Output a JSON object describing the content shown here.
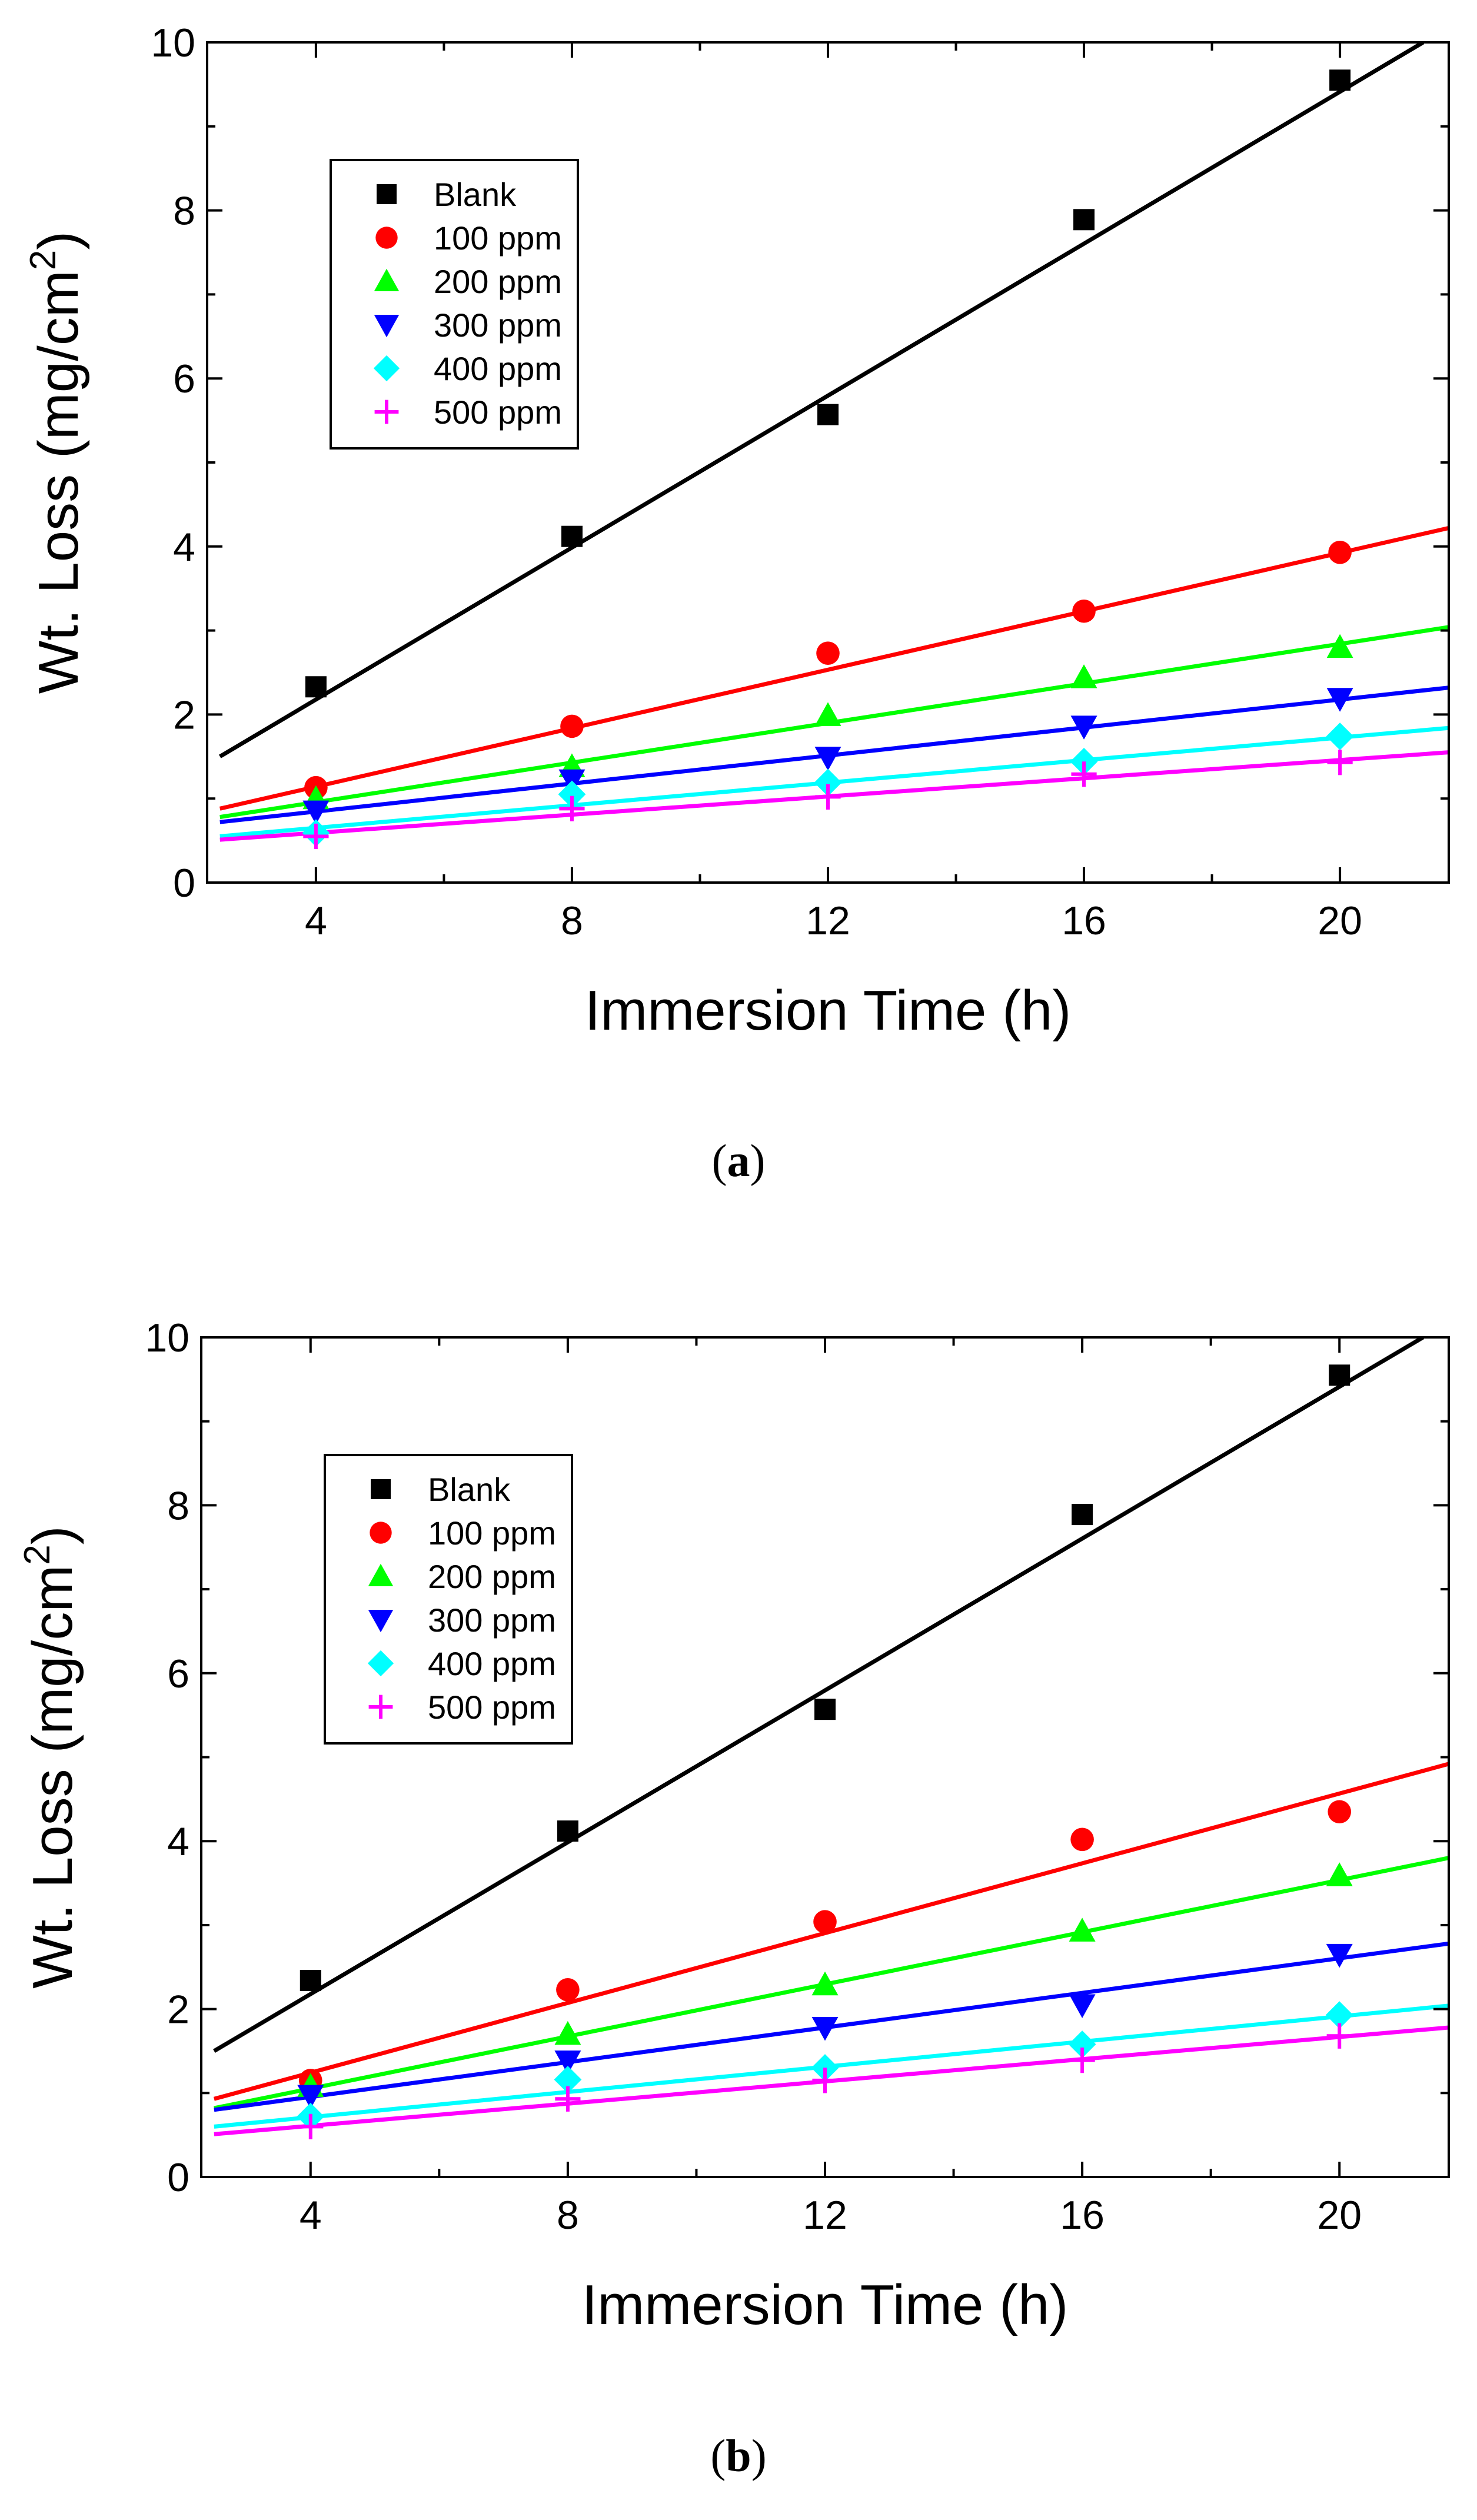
{
  "chart_data": [
    {
      "type": "scatter",
      "panel_label": "a",
      "xlabel": "Immersion Time (h)",
      "ylabel": "Wt. Loss (mg/cm",
      "ylabel_sup": "2",
      "ylabel_end": ")",
      "xlim": [
        2.3,
        21.7
      ],
      "ylim": [
        0,
        10
      ],
      "xticks": [
        4,
        8,
        12,
        16,
        20
      ],
      "yticks": [
        0,
        2,
        4,
        6,
        8,
        10
      ],
      "legend_position": "top-left",
      "x": [
        4,
        8,
        12,
        16,
        20
      ],
      "series": [
        {
          "name": "Blank",
          "marker": "square",
          "color": "#000000",
          "values": [
            2.33,
            4.12,
            5.57,
            7.89,
            9.55
          ],
          "fit": [
            1.5,
            10.0
          ],
          "fit_x": [
            2.5,
            21.3
          ]
        },
        {
          "name": "100 ppm",
          "marker": "circle",
          "color": "#ff0000",
          "values": [
            1.13,
            1.86,
            2.73,
            3.23,
            3.93
          ],
          "fit": [
            0.88,
            4.22
          ],
          "fit_x": [
            2.5,
            21.7
          ]
        },
        {
          "name": "200 ppm",
          "marker": "triangle-up",
          "color": "#00ff00",
          "values": [
            1.0,
            1.38,
            1.99,
            2.44,
            2.8
          ],
          "fit": [
            0.78,
            3.04
          ],
          "fit_x": [
            2.5,
            21.7
          ]
        },
        {
          "name": "300 ppm",
          "marker": "triangle-down",
          "color": "#0000ff",
          "values": [
            0.85,
            1.22,
            1.49,
            1.86,
            2.19
          ],
          "fit": [
            0.72,
            2.32
          ],
          "fit_x": [
            2.5,
            21.7
          ]
        },
        {
          "name": "400 ppm",
          "marker": "diamond",
          "color": "#00ffff",
          "values": [
            0.59,
            1.05,
            1.19,
            1.44,
            1.74
          ],
          "fit": [
            0.55,
            1.84
          ],
          "fit_x": [
            2.5,
            21.7
          ]
        },
        {
          "name": "500 ppm",
          "marker": "plus",
          "color": "#ff00ff",
          "values": [
            0.55,
            0.88,
            1.02,
            1.29,
            1.43
          ],
          "fit": [
            0.51,
            1.55
          ],
          "fit_x": [
            2.5,
            21.7
          ]
        }
      ]
    },
    {
      "type": "scatter",
      "panel_label": "b",
      "xlabel": "Immersion Time (h)",
      "ylabel": "Wt. Loss (mg/cm",
      "ylabel_sup": "2",
      "ylabel_end": ")",
      "xlim": [
        2.3,
        21.7
      ],
      "ylim": [
        0,
        10
      ],
      "xticks": [
        4,
        8,
        12,
        16,
        20
      ],
      "yticks": [
        0,
        2,
        4,
        6,
        8,
        10
      ],
      "legend_position": "top-left",
      "x": [
        4,
        8,
        12,
        16,
        20
      ],
      "series": [
        {
          "name": "Blank",
          "marker": "square",
          "color": "#000000",
          "values": [
            2.34,
            4.12,
            5.57,
            7.89,
            9.55
          ],
          "fit": [
            1.5,
            10.0
          ],
          "fit_x": [
            2.5,
            21.3
          ]
        },
        {
          "name": "100 ppm",
          "marker": "circle",
          "color": "#ff0000",
          "values": [
            1.15,
            2.23,
            3.04,
            4.02,
            4.35
          ],
          "fit": [
            0.93,
            4.92
          ],
          "fit_x": [
            2.5,
            21.7
          ]
        },
        {
          "name": "200 ppm",
          "marker": "triangle-up",
          "color": "#00ff00",
          "values": [
            1.08,
            1.7,
            2.29,
            2.93,
            3.59
          ],
          "fit": [
            0.82,
            3.8
          ],
          "fit_x": [
            2.5,
            21.7
          ]
        },
        {
          "name": "300 ppm",
          "marker": "triangle-down",
          "color": "#0000ff",
          "values": [
            0.97,
            1.38,
            1.78,
            2.05,
            2.65
          ],
          "fit": [
            0.8,
            2.78
          ],
          "fit_x": [
            2.5,
            21.7
          ]
        },
        {
          "name": "400 ppm",
          "marker": "diamond",
          "color": "#00ffff",
          "values": [
            0.72,
            1.16,
            1.3,
            1.58,
            1.93
          ],
          "fit": [
            0.6,
            2.04
          ],
          "fit_x": [
            2.5,
            21.7
          ]
        },
        {
          "name": "500 ppm",
          "marker": "plus",
          "color": "#ff00ff",
          "values": [
            0.6,
            0.93,
            1.15,
            1.39,
            1.68
          ],
          "fit": [
            0.51,
            1.78
          ],
          "fit_x": [
            2.5,
            21.7
          ]
        }
      ]
    }
  ]
}
